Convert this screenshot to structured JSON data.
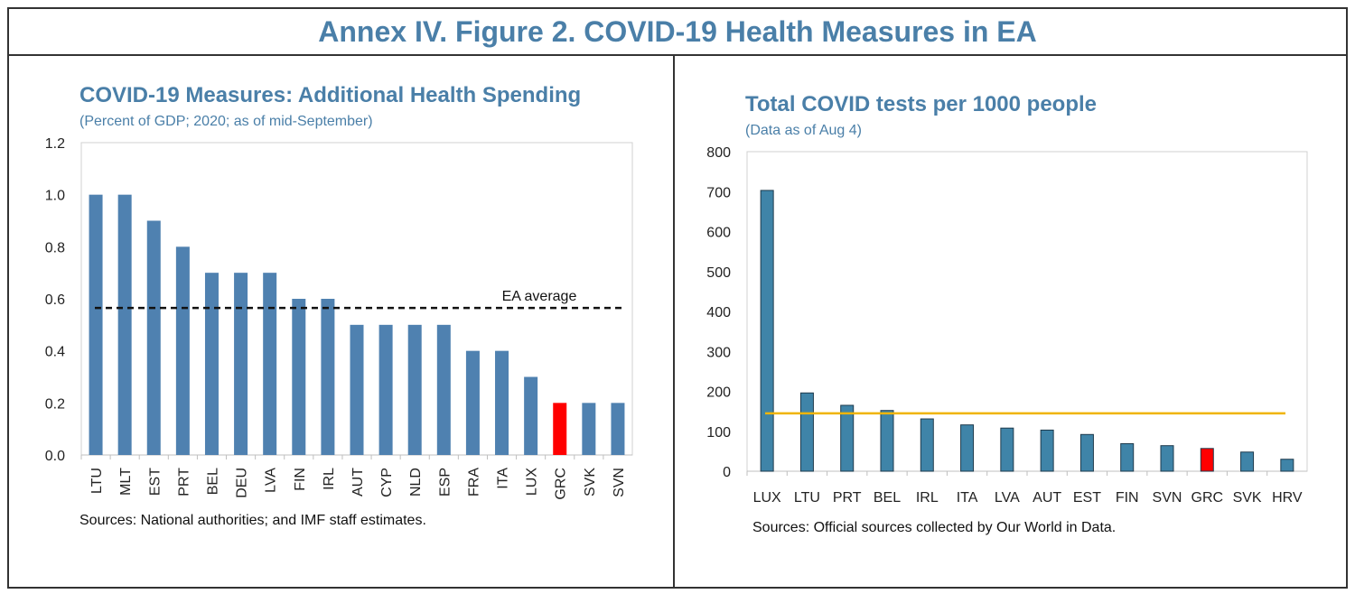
{
  "figure": {
    "title": "Annex IV. Figure 2. COVID-19 Health Measures in EA"
  },
  "colors": {
    "accent": "#4a7fa8",
    "bar_left": "#4f81b0",
    "bar_right": "#3f84a8",
    "highlight": "#ff0000",
    "average_line_right": "#f0b400"
  },
  "chart_data": [
    {
      "type": "bar",
      "title": "COVID-19 Measures: Additional Health Spending",
      "subtitle": "(Percent of GDP; 2020; as of mid-September)",
      "categories": [
        "LTU",
        "MLT",
        "EST",
        "PRT",
        "BEL",
        "DEU",
        "LVA",
        "FIN",
        "IRL",
        "AUT",
        "CYP",
        "NLD",
        "ESP",
        "FRA",
        "ITA",
        "LUX",
        "GRC",
        "SVK",
        "SVN"
      ],
      "values": [
        1.0,
        1.0,
        0.9,
        0.8,
        0.7,
        0.7,
        0.7,
        0.6,
        0.6,
        0.5,
        0.5,
        0.5,
        0.5,
        0.4,
        0.4,
        0.3,
        0.2,
        0.2,
        0.2
      ],
      "highlight": "GRC",
      "ylim": [
        0,
        1.2
      ],
      "yticks": [
        "0.0",
        "0.2",
        "0.4",
        "0.6",
        "0.8",
        "1.0",
        "1.2"
      ],
      "reference_line": {
        "label": "EA average",
        "value": 0.565,
        "style": "dashed"
      },
      "source": "Sources: National authorities; and IMF staff estimates."
    },
    {
      "type": "bar",
      "title": "Total COVID tests per 1000 people",
      "subtitle": "(Data as of Aug 4)",
      "categories": [
        "LUX",
        "LTU",
        "PRT",
        "BEL",
        "IRL",
        "ITA",
        "LVA",
        "AUT",
        "EST",
        "FIN",
        "SVN",
        "GRC",
        "SVK",
        "HRV"
      ],
      "values": [
        703,
        196,
        165,
        152,
        131,
        116,
        108,
        103,
        92,
        69,
        64,
        57,
        48,
        30
      ],
      "highlight": "GRC",
      "ylim": [
        0,
        800
      ],
      "yticks": [
        "0",
        "100",
        "200",
        "300",
        "400",
        "500",
        "600",
        "700",
        "800"
      ],
      "reference_line": {
        "value": 145,
        "style": "solid"
      },
      "source": "Sources: Official sources collected by Our World in Data."
    }
  ]
}
